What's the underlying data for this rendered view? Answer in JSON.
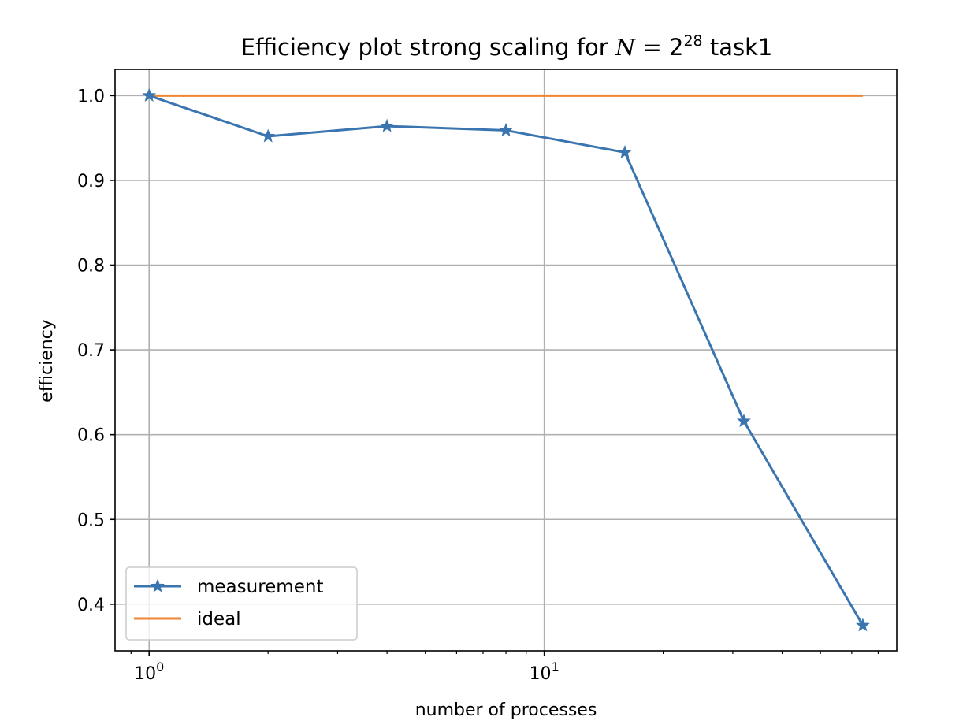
{
  "chart_data": {
    "type": "line",
    "title": {
      "prefix": "Efficiency plot strong scaling for ",
      "math_var": "N",
      "math_eq": " = 2",
      "math_exp": "28",
      "suffix": " task1"
    },
    "xlabel": "number of processes",
    "ylabel": "efficiency",
    "x_scale": "log",
    "xlim": [
      0.82,
      78
    ],
    "ylim": [
      0.345,
      1.031
    ],
    "grid": true,
    "legend_position": "lower-left",
    "x_ticks": [
      {
        "value": 1,
        "base": "10",
        "exp": "0"
      },
      {
        "value": 10,
        "base": "10",
        "exp": "1"
      }
    ],
    "y_ticks": [
      {
        "value": 0.4,
        "label": "0.4"
      },
      {
        "value": 0.5,
        "label": "0.5"
      },
      {
        "value": 0.6,
        "label": "0.6"
      },
      {
        "value": 0.7,
        "label": "0.7"
      },
      {
        "value": 0.8,
        "label": "0.8"
      },
      {
        "value": 0.9,
        "label": "0.9"
      },
      {
        "value": 1.0,
        "label": "1.0"
      }
    ],
    "series": [
      {
        "name": "measurement",
        "color": "#3a75af",
        "marker": "star",
        "x": [
          1,
          2,
          4,
          8,
          16,
          32,
          64
        ],
        "y": [
          1.0,
          0.952,
          0.964,
          0.959,
          0.933,
          0.616,
          0.375
        ]
      },
      {
        "name": "ideal",
        "color": "#ef8636",
        "marker": "none",
        "x": [
          1,
          64
        ],
        "y": [
          1.0,
          1.0
        ]
      }
    ]
  }
}
